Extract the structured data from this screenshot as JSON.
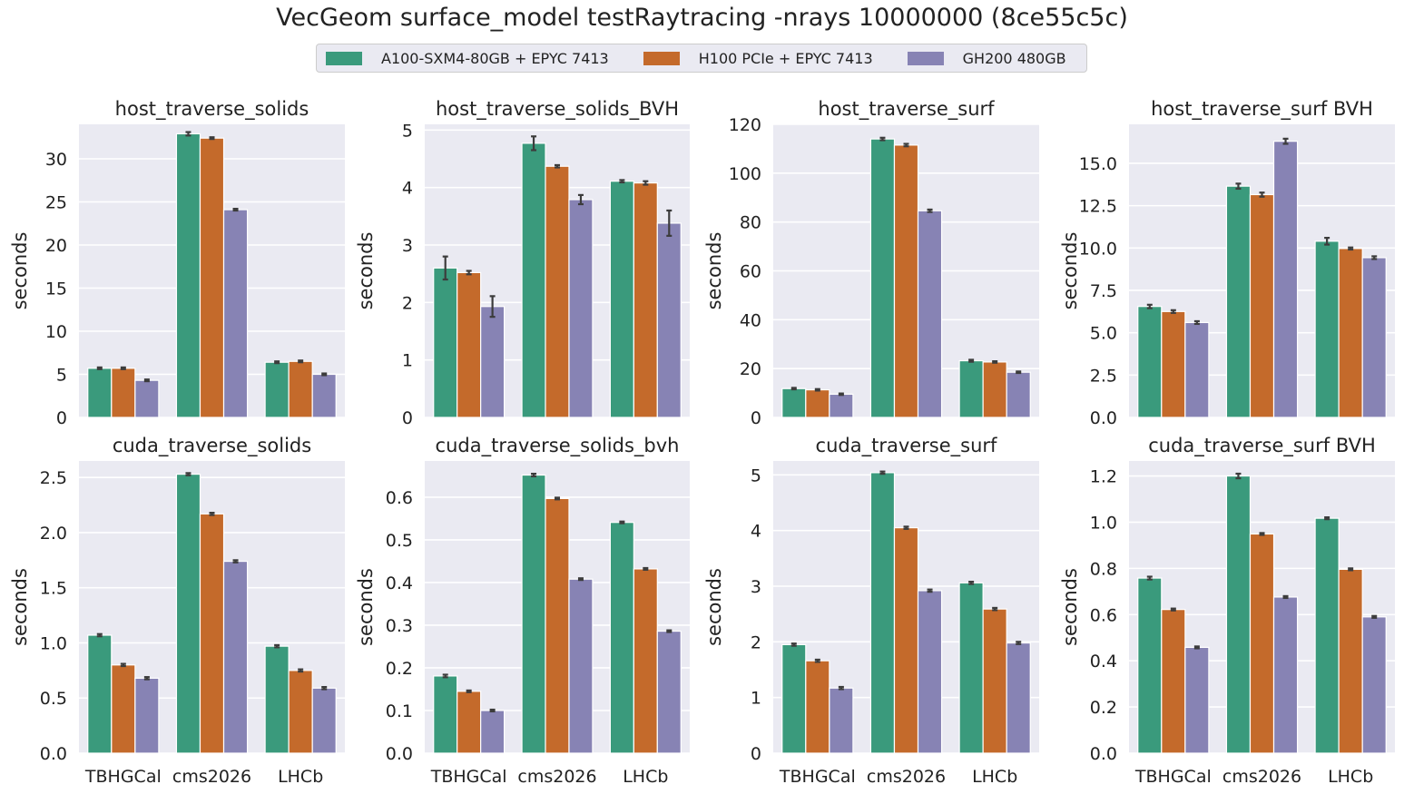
{
  "figure": {
    "title": "VecGeom surface_model testRaytracing -nrays 10000000 (8ce55c5c)"
  },
  "legend": {
    "entries": [
      {
        "label": "A100-SXM4-80GB + EPYC 7413",
        "color": "#3a9a7c"
      },
      {
        "label": "H100 PCIe + EPYC 7413",
        "color": "#c46a2b"
      },
      {
        "label": "GH200 480GB",
        "color": "#8783b4"
      }
    ]
  },
  "colors": {
    "axes_background": "#eaeaf2",
    "grid": "#ffffff",
    "error_bar": "#3c3c3c",
    "text": "#222222"
  },
  "chart_data": [
    {
      "type": "bar",
      "title": "host_traverse_solids",
      "ylabel": "seconds",
      "categories": [
        "TBHGCal",
        "cms2026",
        "LHCb"
      ],
      "ylim": [
        0,
        34
      ],
      "yticks": [
        0,
        5,
        10,
        15,
        20,
        25,
        30
      ],
      "ytick_labels": [
        "0",
        "5",
        "10",
        "15",
        "20",
        "25",
        "30"
      ],
      "show_xticklabels": false,
      "series": [
        {
          "name": "A100-SXM4-80GB + EPYC 7413",
          "values": [
            5.7,
            32.9,
            6.4
          ],
          "errors": [
            0.1,
            0.2,
            0.1
          ]
        },
        {
          "name": "H100 PCIe + EPYC 7413",
          "values": [
            5.7,
            32.4,
            6.5
          ],
          "errors": [
            0.1,
            0.1,
            0.1
          ]
        },
        {
          "name": "GH200 480GB",
          "values": [
            4.3,
            24.1,
            5.0
          ],
          "errors": [
            0.1,
            0.1,
            0.1
          ]
        }
      ]
    },
    {
      "type": "bar",
      "title": "host_traverse_solids_BVH",
      "ylabel": "seconds",
      "categories": [
        "TBHGCal",
        "cms2026",
        "LHCb"
      ],
      "ylim": [
        0,
        5.1
      ],
      "yticks": [
        0,
        1,
        2,
        3,
        4,
        5
      ],
      "ytick_labels": [
        "0",
        "1",
        "2",
        "3",
        "4",
        "5"
      ],
      "show_xticklabels": false,
      "series": [
        {
          "name": "A100-SXM4-80GB + EPYC 7413",
          "values": [
            2.6,
            4.77,
            4.11
          ],
          "errors": [
            0.2,
            0.12,
            0.02
          ]
        },
        {
          "name": "H100 PCIe + EPYC 7413",
          "values": [
            2.52,
            4.37,
            4.08
          ],
          "errors": [
            0.03,
            0.02,
            0.03
          ]
        },
        {
          "name": "GH200 480GB",
          "values": [
            1.93,
            3.79,
            3.38
          ],
          "errors": [
            0.18,
            0.08,
            0.22
          ]
        }
      ]
    },
    {
      "type": "bar",
      "title": "host_traverse_surf",
      "ylabel": "seconds",
      "categories": [
        "TBHGCal",
        "cms2026",
        "LHCb"
      ],
      "ylim": [
        0,
        120
      ],
      "yticks": [
        0,
        20,
        40,
        60,
        80,
        100,
        120
      ],
      "ytick_labels": [
        "0",
        "20",
        "40",
        "60",
        "80",
        "100",
        "120"
      ],
      "show_xticklabels": false,
      "series": [
        {
          "name": "A100-SXM4-80GB + EPYC 7413",
          "values": [
            11.8,
            114.0,
            23.2
          ],
          "errors": [
            0.3,
            0.5,
            0.4
          ]
        },
        {
          "name": "H100 PCIe + EPYC 7413",
          "values": [
            11.3,
            111.5,
            22.7
          ],
          "errors": [
            0.3,
            0.5,
            0.3
          ]
        },
        {
          "name": "GH200 480GB",
          "values": [
            9.5,
            84.6,
            18.5
          ],
          "errors": [
            0.3,
            0.5,
            0.3
          ]
        }
      ]
    },
    {
      "type": "bar",
      "title": "host_traverse_surf BVH",
      "ylabel": "seconds",
      "categories": [
        "TBHGCal",
        "cms2026",
        "LHCb"
      ],
      "ylim": [
        0,
        17.3
      ],
      "yticks": [
        0,
        2.5,
        5,
        7.5,
        10,
        12.5,
        15
      ],
      "ytick_labels": [
        "0.0",
        "2.5",
        "5.0",
        "7.5",
        "10.0",
        "12.5",
        "15.0"
      ],
      "show_xticklabels": false,
      "series": [
        {
          "name": "A100-SXM4-80GB + EPYC 7413",
          "values": [
            6.55,
            13.65,
            10.4
          ],
          "errors": [
            0.1,
            0.15,
            0.2
          ]
        },
        {
          "name": "H100 PCIe + EPYC 7413",
          "values": [
            6.25,
            13.15,
            9.97
          ],
          "errors": [
            0.08,
            0.12,
            0.06
          ]
        },
        {
          "name": "GH200 480GB",
          "values": [
            5.6,
            16.3,
            9.43
          ],
          "errors": [
            0.08,
            0.15,
            0.08
          ]
        }
      ]
    },
    {
      "type": "bar",
      "title": "cuda_traverse_solids",
      "ylabel": "seconds",
      "categories": [
        "TBHGCal",
        "cms2026",
        "LHCb"
      ],
      "ylim": [
        0,
        2.65
      ],
      "yticks": [
        0,
        0.5,
        1,
        1.5,
        2,
        2.5
      ],
      "ytick_labels": [
        "0.0",
        "0.5",
        "1.0",
        "1.5",
        "2.0",
        "2.5"
      ],
      "show_xticklabels": true,
      "series": [
        {
          "name": "A100-SXM4-80GB + EPYC 7413",
          "values": [
            1.07,
            2.53,
            0.97
          ],
          "errors": [
            0.01,
            0.01,
            0.01
          ]
        },
        {
          "name": "H100 PCIe + EPYC 7413",
          "values": [
            0.8,
            2.17,
            0.75
          ],
          "errors": [
            0.01,
            0.01,
            0.01
          ]
        },
        {
          "name": "GH200 480GB",
          "values": [
            0.68,
            1.74,
            0.59
          ],
          "errors": [
            0.01,
            0.01,
            0.01
          ]
        }
      ]
    },
    {
      "type": "bar",
      "title": "cuda_traverse_solids_bvh",
      "ylabel": "seconds",
      "categories": [
        "TBHGCal",
        "cms2026",
        "LHCb"
      ],
      "ylim": [
        0,
        0.685
      ],
      "yticks": [
        0,
        0.1,
        0.2,
        0.3,
        0.4,
        0.5,
        0.6
      ],
      "ytick_labels": [
        "0.0",
        "0.1",
        "0.2",
        "0.3",
        "0.4",
        "0.5",
        "0.6"
      ],
      "show_xticklabels": true,
      "series": [
        {
          "name": "A100-SXM4-80GB + EPYC 7413",
          "values": [
            0.181,
            0.652,
            0.541
          ],
          "errors": [
            0.003,
            0.003,
            0.002
          ]
        },
        {
          "name": "H100 PCIe + EPYC 7413",
          "values": [
            0.145,
            0.597,
            0.432
          ],
          "errors": [
            0.002,
            0.002,
            0.002
          ]
        },
        {
          "name": "GH200 480GB",
          "values": [
            0.1,
            0.408,
            0.286
          ],
          "errors": [
            0.002,
            0.002,
            0.002
          ]
        }
      ]
    },
    {
      "type": "bar",
      "title": "cuda_traverse_surf",
      "ylabel": "seconds",
      "categories": [
        "TBHGCal",
        "cms2026",
        "LHCb"
      ],
      "ylim": [
        0,
        5.25
      ],
      "yticks": [
        0,
        1,
        2,
        3,
        4,
        5
      ],
      "ytick_labels": [
        "0",
        "1",
        "2",
        "3",
        "4",
        "5"
      ],
      "show_xticklabels": true,
      "series": [
        {
          "name": "A100-SXM4-80GB + EPYC 7413",
          "values": [
            1.95,
            5.04,
            3.06
          ],
          "errors": [
            0.02,
            0.02,
            0.02
          ]
        },
        {
          "name": "H100 PCIe + EPYC 7413",
          "values": [
            1.66,
            4.05,
            2.59
          ],
          "errors": [
            0.02,
            0.02,
            0.02
          ]
        },
        {
          "name": "GH200 480GB",
          "values": [
            1.17,
            2.92,
            1.98
          ],
          "errors": [
            0.02,
            0.02,
            0.02
          ]
        }
      ]
    },
    {
      "type": "bar",
      "title": "cuda_traverse_surf BVH",
      "ylabel": "seconds",
      "categories": [
        "TBHGCal",
        "cms2026",
        "LHCb"
      ],
      "ylim": [
        0,
        1.265
      ],
      "yticks": [
        0,
        0.2,
        0.4,
        0.6,
        0.8,
        1,
        1.2
      ],
      "ytick_labels": [
        "0.0",
        "0.2",
        "0.4",
        "0.6",
        "0.8",
        "1.0",
        "1.2"
      ],
      "show_xticklabels": true,
      "series": [
        {
          "name": "A100-SXM4-80GB + EPYC 7413",
          "values": [
            0.758,
            1.2,
            1.017
          ],
          "errors": [
            0.006,
            0.01,
            0.004
          ]
        },
        {
          "name": "H100 PCIe + EPYC 7413",
          "values": [
            0.622,
            0.949,
            0.796
          ],
          "errors": [
            0.004,
            0.004,
            0.004
          ]
        },
        {
          "name": "GH200 480GB",
          "values": [
            0.458,
            0.676,
            0.59
          ],
          "errors": [
            0.004,
            0.004,
            0.004
          ]
        }
      ]
    }
  ]
}
